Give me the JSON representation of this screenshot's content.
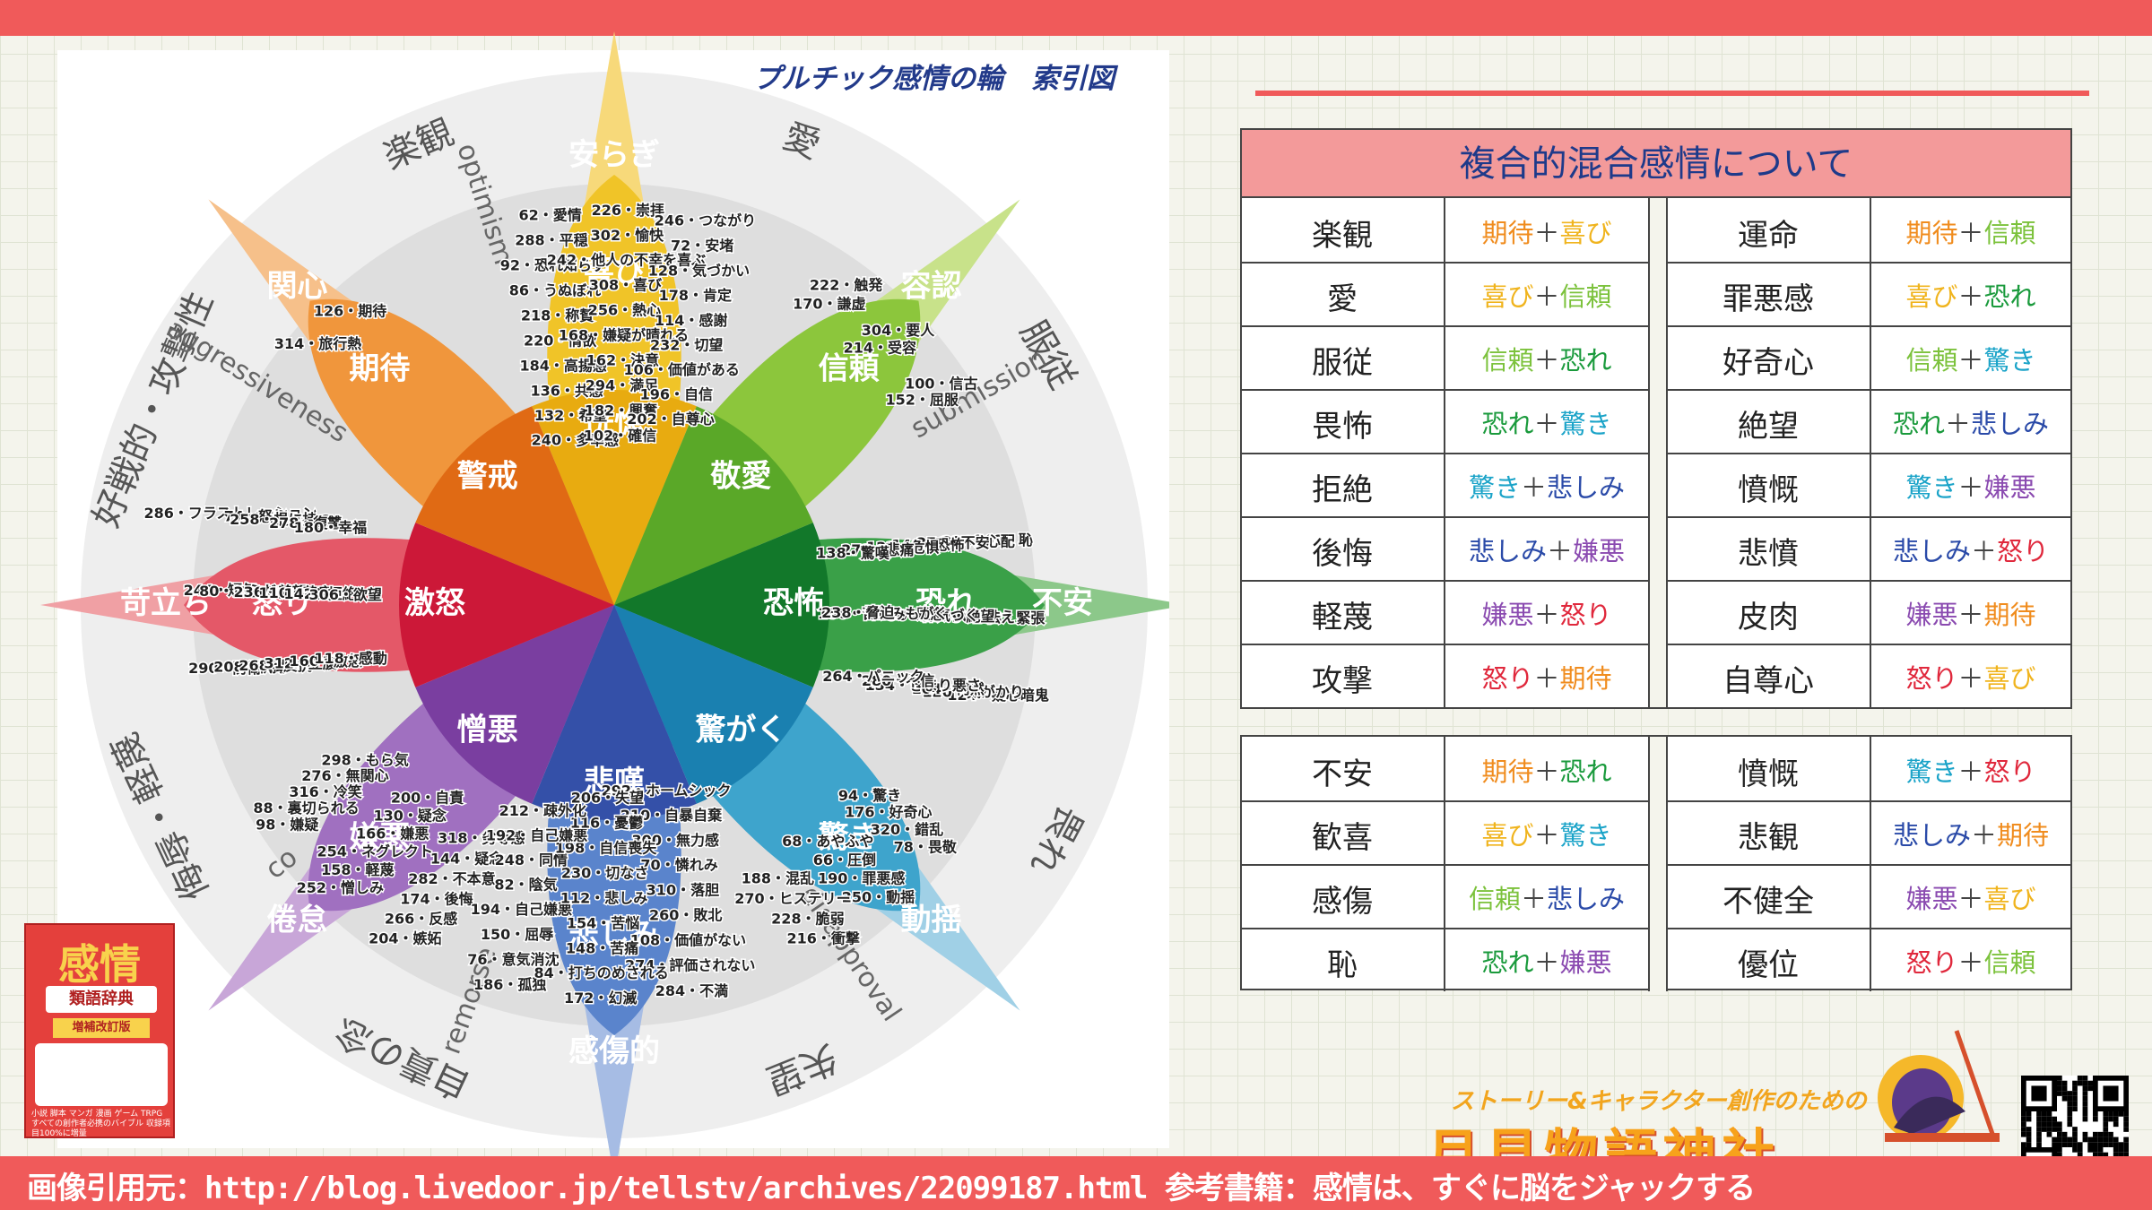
{
  "wheel": {
    "title": "プルチック感情の輪　索引図",
    "outer_labels": [
      "楽観",
      "愛",
      "服従",
      "畏れ",
      "失望",
      "自責の念",
      "侮辱・軽蔑",
      "好戦的・攻撃性"
    ],
    "outer_english": [
      "optimism",
      "aggressiveness",
      "submission",
      "disapproval",
      "remorse",
      "co"
    ],
    "petal_names": {
      "joy": [
        "安らぎ",
        "喜び",
        "恍惚"
      ],
      "trust": [
        "容認",
        "信頼",
        "敬愛"
      ],
      "fear": [
        "不安",
        "恐れ",
        "恐怖"
      ],
      "surprise": [
        "動揺",
        "驚き",
        "驚がく"
      ],
      "sadness": [
        "感傷的",
        "悲しみ",
        "悲嘆"
      ],
      "disgust": [
        "倦怠",
        "嫌悪",
        "憎悪"
      ],
      "anger": [
        "苛立ち",
        "怒り",
        "激怒"
      ],
      "anticipation": [
        "関心",
        "期待",
        "警戒"
      ]
    },
    "index": {
      "joy": [
        "62・愛情",
        "226・崇拝",
        "246・つながり",
        "288・平穏",
        "302・愉快",
        "72・安堵",
        "92・恐れ知らず",
        "242・他人の不幸を喜ぶ",
        "128・気づかい",
        "86・うぬぼれ",
        "308・喜び",
        "178・肯定",
        "218・称賛",
        "256・熱心",
        "114・感謝",
        "220・情欲",
        "168・嫌疑が晴れる",
        "232・切望",
        "184・高揚感",
        "162・決意",
        "106・価値がある",
        "136・共感",
        "294・満足",
        "196・自信",
        "132・希望",
        "182・興奮",
        "202・自尊心",
        "240・多幸感",
        "102・確信"
      ],
      "trust": [
        "222・触発",
        "304・要人",
        "100・信古",
        "170・謙虚",
        "214・受容",
        "152・屈服"
      ],
      "anticipation": [
        "314・旅行熱",
        "126・期待"
      ],
      "anger": [
        "290・防衛",
        "244・短気",
        "286・フラストレーション",
        "208・執拗",
        "80・いらだち",
        "74・怒り",
        "268・反抗",
        "236・羨望",
        "258・根に持つ",
        "312・立腹",
        "110・苦痛",
        "278・復讐",
        "160・激怒",
        "142・拒絶",
        "180・幸福",
        "118・感動",
        "306・欲望"
      ],
      "fear": [
        "262・恥",
        "146・緊張",
        "124・疑心暗鬼",
        "224・心配",
        "96・怯え",
        "120・気がかり",
        "276・不安",
        "234・絶望",
        "104・何然",
        "140・恐怖",
        "90・怖気づく",
        "134・きまり悪さ",
        "122・危惧",
        "164・懸念",
        "280・不信",
        "272・悲痛",
        "156・苦しみもがく",
        "264・パニック",
        "138・驚嘆",
        "238・脅迫"
      ],
      "surprise": [
        "78・畏敬",
        "250・動揺",
        "216・衝撃",
        "320・錯乱",
        "190・罪悪感",
        "228・脆弱",
        "176・好奇心",
        "66・圧倒",
        "270・ヒステリー",
        "94・驚き",
        "68・あやふや",
        "188・混乱"
      ],
      "disgust": [
        "204・嫉妬",
        "252・憎しみ",
        "98・嫌疑",
        "266・反感",
        "158・軽蔑",
        "88・裏切られる",
        "174・後悔",
        "254・ネグレクト",
        "316・冷笑",
        "282・不本意",
        "166・嫌悪",
        "276・無関心",
        "144・疑念",
        "130・疑念",
        "298・もら気",
        "318・劣等感",
        "200・自責"
      ],
      "sadness": [
        "284・不満",
        "172・幻滅",
        "186・孤独",
        "274・評価されない",
        "84・打ちのめされる",
        "76・意気消沈",
        "108・価値がない",
        "148・苦痛",
        "150・屈辱",
        "260・敗北",
        "154・苦悩",
        "194・自己嫌悪",
        "310・落胆",
        "112・悲しみ",
        "82・陰気",
        "70・憐れみ",
        "230・切なさ",
        "248・同情",
        "300・無力感",
        "198・自信喪失",
        "192・自己嫌悪",
        "210・自暴自棄",
        "116・憂鬱",
        "212・疎外化",
        "292・ホームシック",
        "206・失望"
      ]
    }
  },
  "table1": {
    "title": "複合的混合感情について",
    "rows": [
      [
        {
          "name": "楽観",
          "a": "期待",
          "b": "喜び",
          "ca": "#f08c1e",
          "cb": "#f0b41e"
        },
        {
          "name": "運命",
          "a": "期待",
          "b": "信頼",
          "ca": "#f08c1e",
          "cb": "#7cc23c"
        }
      ],
      [
        {
          "name": "愛",
          "a": "喜び",
          "b": "信頼",
          "ca": "#f0b41e",
          "cb": "#7cc23c"
        },
        {
          "name": "罪悪感",
          "a": "喜び",
          "b": "恐れ",
          "ca": "#f0b41e",
          "cb": "#1a9a3c"
        }
      ],
      [
        {
          "name": "服従",
          "a": "信頼",
          "b": "恐れ",
          "ca": "#7cc23c",
          "cb": "#1a9a3c"
        },
        {
          "name": "好奇心",
          "a": "信頼",
          "b": "驚き",
          "ca": "#7cc23c",
          "cb": "#1aa3c8"
        }
      ],
      [
        {
          "name": "畏怖",
          "a": "恐れ",
          "b": "驚き",
          "ca": "#1a9a3c",
          "cb": "#1aa3c8"
        },
        {
          "name": "絶望",
          "a": "恐れ",
          "b": "悲しみ",
          "ca": "#1a9a3c",
          "cb": "#2a4aa8"
        }
      ],
      [
        {
          "name": "拒絶",
          "a": "驚き",
          "b": "悲しみ",
          "ca": "#1aa3c8",
          "cb": "#2a4aa8"
        },
        {
          "name": "憤慨",
          "a": "驚き",
          "b": "嫌悪",
          "ca": "#1aa3c8",
          "cb": "#8a4ab0"
        }
      ],
      [
        {
          "name": "後悔",
          "a": "悲しみ",
          "b": "嫌悪",
          "ca": "#2a4aa8",
          "cb": "#8a4ab0"
        },
        {
          "name": "悲憤",
          "a": "悲しみ",
          "b": "怒り",
          "ca": "#2a4aa8",
          "cb": "#e0283c"
        }
      ],
      [
        {
          "name": "軽蔑",
          "a": "嫌悪",
          "b": "怒り",
          "ca": "#8a4ab0",
          "cb": "#e0283c"
        },
        {
          "name": "皮肉",
          "a": "嫌悪",
          "b": "期待",
          "ca": "#8a4ab0",
          "cb": "#f08c1e"
        }
      ],
      [
        {
          "name": "攻撃",
          "a": "怒り",
          "b": "期待",
          "ca": "#e0283c",
          "cb": "#f08c1e"
        },
        {
          "name": "自尊心",
          "a": "怒り",
          "b": "喜び",
          "ca": "#e0283c",
          "cb": "#f0b41e"
        }
      ]
    ]
  },
  "table2": {
    "rows": [
      [
        {
          "name": "不安",
          "a": "期待",
          "b": "恐れ",
          "ca": "#f08c1e",
          "cb": "#1a9a3c"
        },
        {
          "name": "憤慨",
          "a": "驚き",
          "b": "怒り",
          "ca": "#1aa3c8",
          "cb": "#e0283c"
        }
      ],
      [
        {
          "name": "歓喜",
          "a": "喜び",
          "b": "驚き",
          "ca": "#f0b41e",
          "cb": "#1aa3c8"
        },
        {
          "name": "悲観",
          "a": "悲しみ",
          "b": "期待",
          "ca": "#2a4aa8",
          "cb": "#f08c1e"
        }
      ],
      [
        {
          "name": "感傷",
          "a": "信頼",
          "b": "悲しみ",
          "ca": "#7cc23c",
          "cb": "#2a4aa8"
        },
        {
          "name": "不健全",
          "a": "嫌悪",
          "b": "喜び",
          "ca": "#8a4ab0",
          "cb": "#f0b41e"
        }
      ],
      [
        {
          "name": "恥",
          "a": "恐れ",
          "b": "嫌悪",
          "ca": "#1a9a3c",
          "cb": "#8a4ab0"
        },
        {
          "name": "優位",
          "a": "怒り",
          "b": "信頼",
          "ca": "#e0283c",
          "cb": "#7cc23c"
        }
      ]
    ]
  },
  "plus": "＋",
  "book": {
    "title": "感情",
    "subtitle": "類語辞典",
    "edition": "増補改訂版",
    "blurb": "小説 脚本 マンガ 漫画 ゲーム TRPG すべての創作者必携のバイブル 収録項目100%に増量"
  },
  "logo": {
    "line1": "ストーリー&キャラクター創作のための",
    "line2": "月見物語神社"
  },
  "footer": "画像引用元：http://blog.livedoor.jp/tellstv/archives/22099187.html 参考書籍：感情は、すぐに脳をジャックする",
  "colors": {
    "accent": "#f05a5a",
    "table_header": "#f39a9a",
    "title_blue": "#1e3a8a"
  }
}
